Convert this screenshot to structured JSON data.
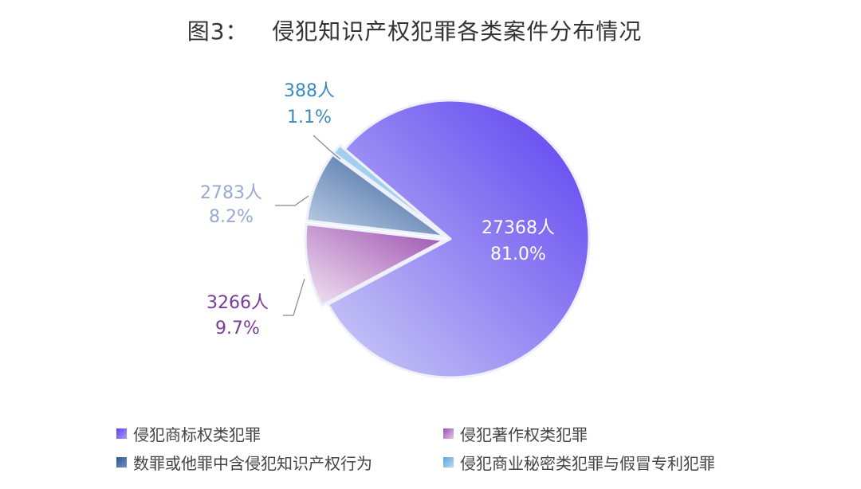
{
  "chart_data": {
    "type": "pie",
    "title": "图3：   侵犯知识产权犯罪各类案件分布情况",
    "unit": "人",
    "slices": [
      {
        "name": "侵犯商标权类犯罪",
        "value": 27368,
        "value_label": "27368人",
        "percent_label": "81.0%",
        "color": "#5b3ff0",
        "color_light": "#cdcdf6",
        "label_color": "#ffffff"
      },
      {
        "name": "侵犯著作权类犯罪",
        "value": 3266,
        "value_label": "3266人",
        "percent_label": "9.7%",
        "color": "#9a4cae",
        "color_light": "#f3e6f3",
        "label_color": "#7a3a9a"
      },
      {
        "name": "数罪或他罪中含侵犯知识产权行为",
        "value": 2783,
        "value_label": "2783人",
        "percent_label": "8.2%",
        "color": "#2c5892",
        "color_light": "#c4d3ea",
        "label_color": "#9aa9d2"
      },
      {
        "name": "侵犯商业秘密类犯罪与假冒专利犯罪",
        "value": 388,
        "value_label": "388人",
        "percent_label": "1.1%",
        "color": "#8cc3e6",
        "color_light": "#b8dcf2",
        "label_color": "#3a8ac0"
      }
    ],
    "legend_position": "bottom"
  }
}
